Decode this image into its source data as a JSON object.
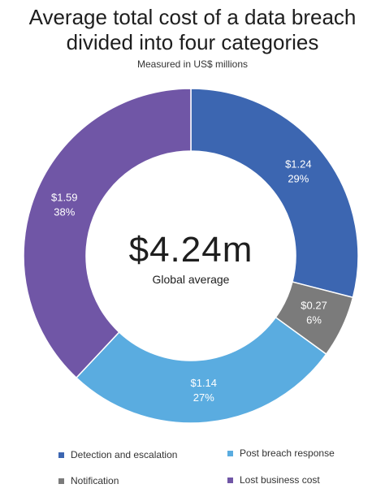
{
  "chart_data": {
    "type": "pie",
    "title": "Average total cost of a data breach divided into four categories",
    "title_lines": [
      "Average total cost of a data breach",
      "divided into four categories"
    ],
    "subtitle": "Measured in US$ millions",
    "center": {
      "value": "$4.24m",
      "label": "Global average"
    },
    "slices": [
      {
        "label": "Detection and escalation",
        "value": 1.24,
        "value_text": "$1.24",
        "percent": 29,
        "percent_text": "29%",
        "color": "#3c66b1"
      },
      {
        "label": "Notification",
        "value": 0.27,
        "value_text": "$0.27",
        "percent": 6,
        "percent_text": "6%",
        "color": "#7b7b7b"
      },
      {
        "label": "Post breach response",
        "value": 1.14,
        "value_text": "$1.14",
        "percent": 27,
        "percent_text": "27%",
        "color": "#5aace0"
      },
      {
        "label": "Lost business cost",
        "value": 1.59,
        "value_text": "$1.59",
        "percent": 38,
        "percent_text": "38%",
        "color": "#7056a6"
      }
    ],
    "legend": [
      "Detection and escalation",
      "Post breach response",
      "Notification",
      "Lost business cost"
    ]
  }
}
